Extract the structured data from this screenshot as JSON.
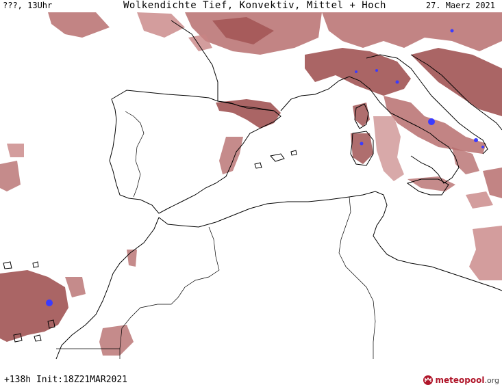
{
  "header": {
    "left": "???, 13Uhr",
    "title": "Wolkendichte  Tief, Konvektiv, Mittel + Hoch",
    "date": "27. Maerz 2021"
  },
  "footer": {
    "run_info": "+138h Init:18Z21MAR2021",
    "logo_main": "meteopool",
    "logo_tld": ".org"
  },
  "colors": {
    "cloud_dense": "#9b4a4a",
    "cloud_medium": "#b76e6e",
    "cloud_light": "#d4a3a3",
    "convective": "#3b3bff",
    "coastline": "#000000",
    "brand": "#b0162a"
  },
  "icons": {
    "logo": "meteopool-logo-icon"
  }
}
